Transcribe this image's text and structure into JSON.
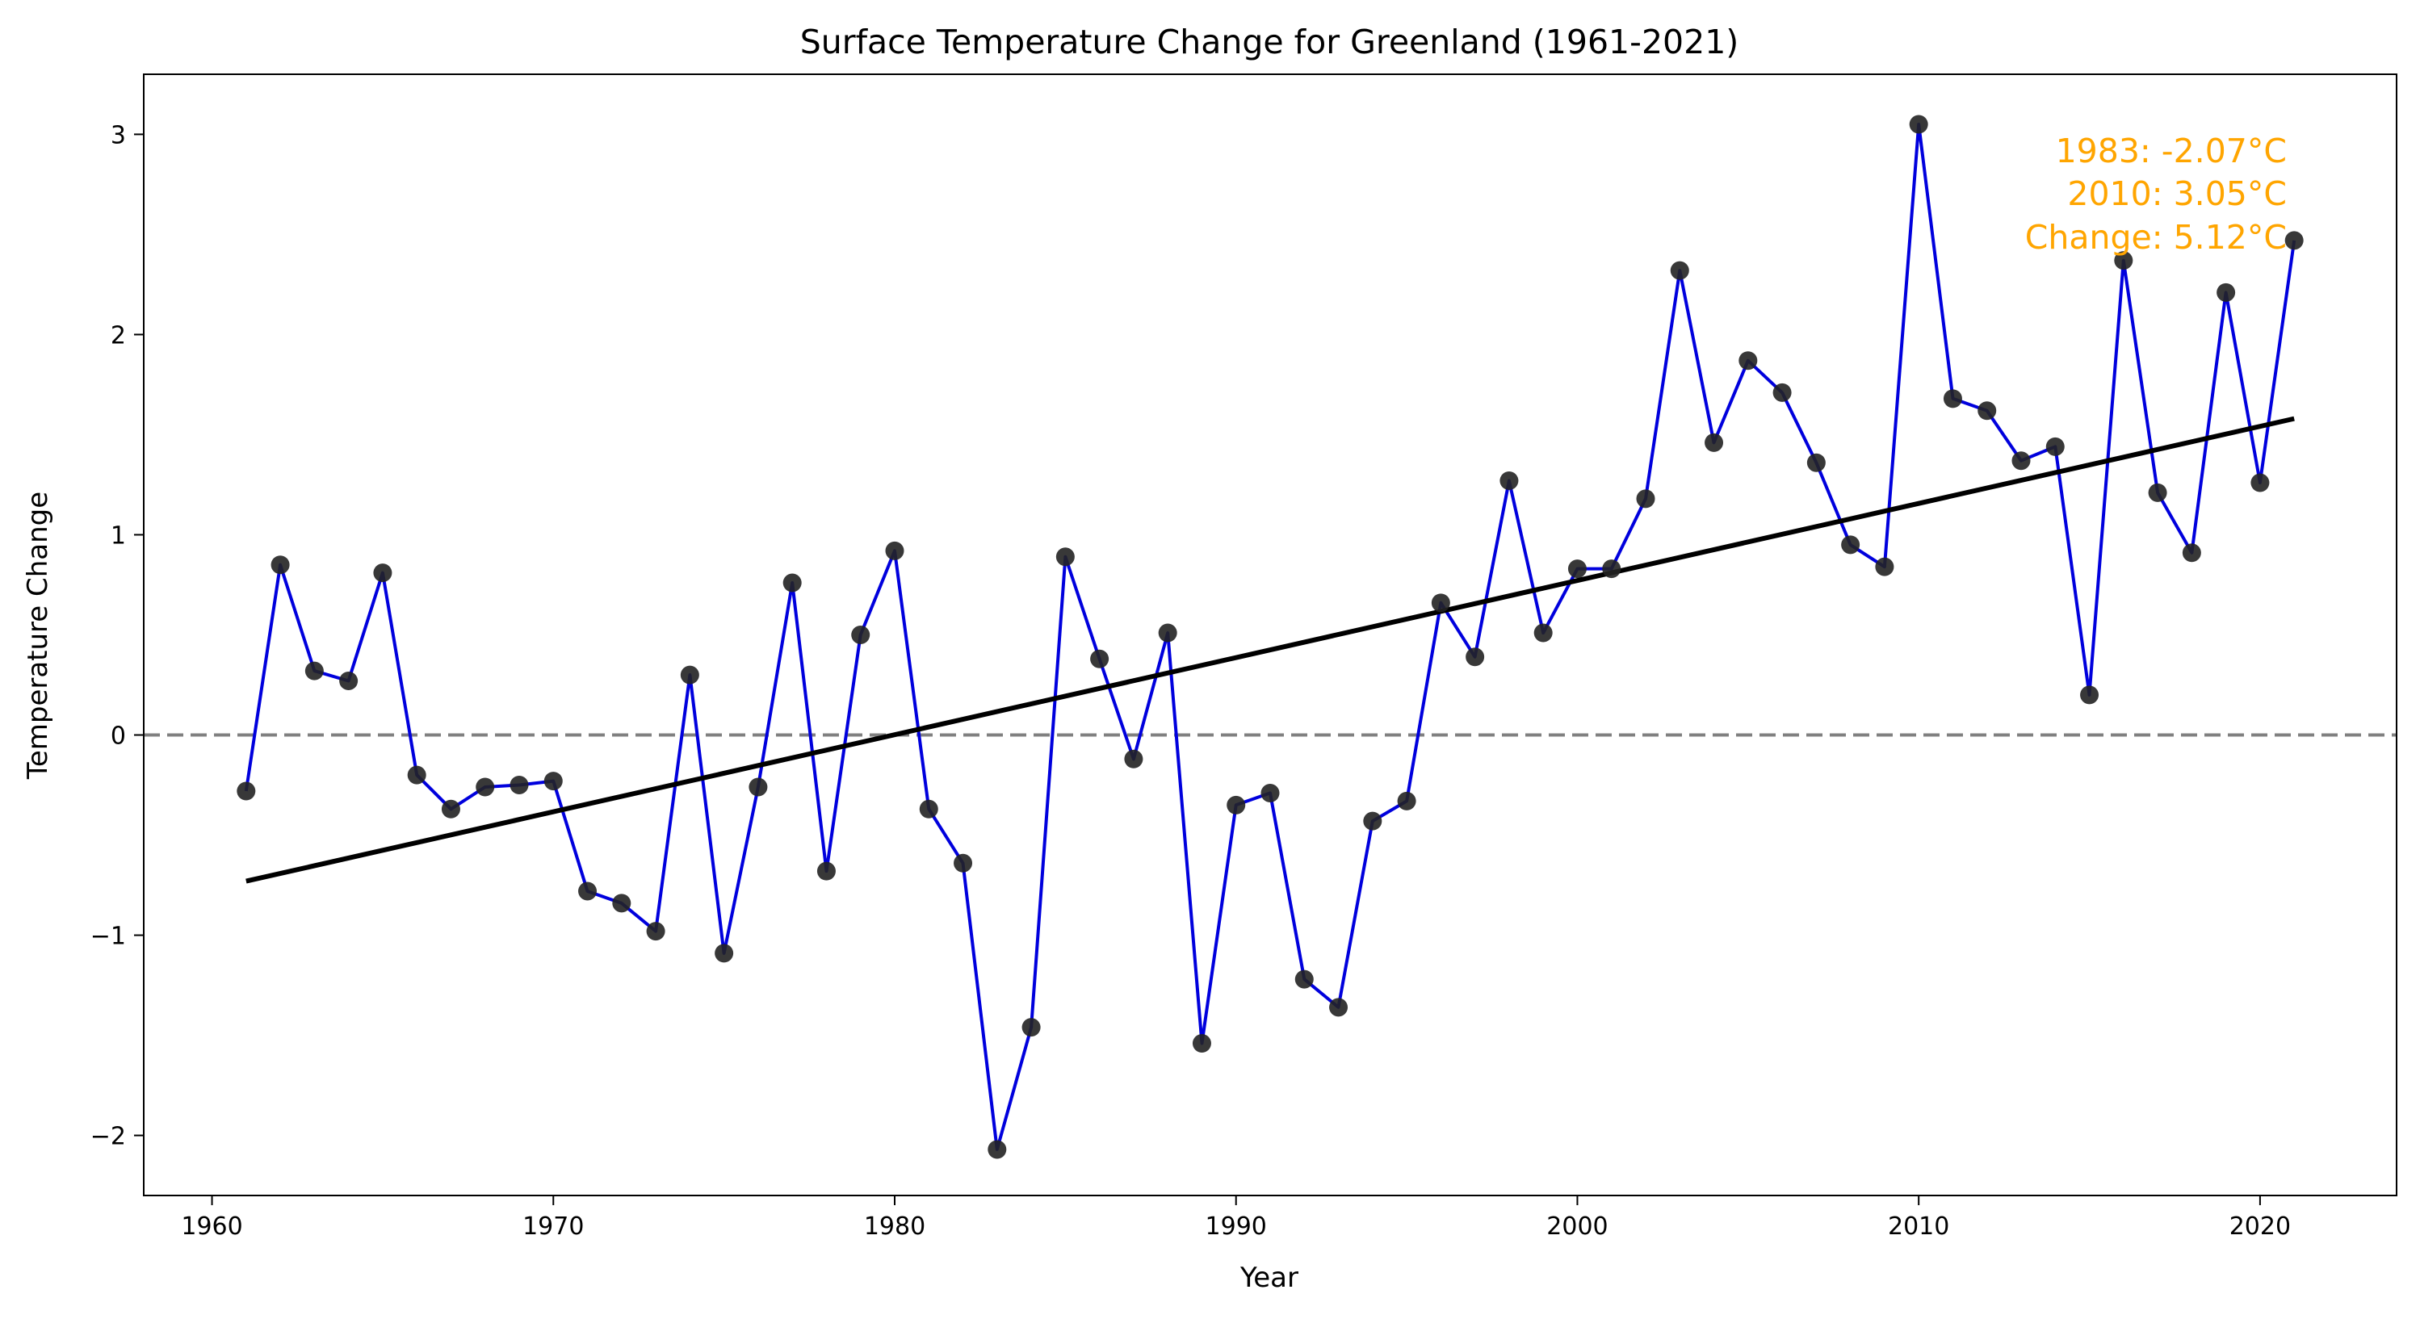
{
  "chart_data": {
    "type": "line",
    "title": "Surface Temperature Change for Greenland (1961-2021)",
    "xlabel": "Year",
    "ylabel": "Temperature Change",
    "xlim": [
      1958.0,
      2024.0
    ],
    "ylim": [
      -2.3,
      3.3
    ],
    "xticks": [
      1960,
      1970,
      1980,
      1990,
      2000,
      2010,
      2020
    ],
    "yticks": [
      -2,
      -1,
      0,
      1,
      2,
      3
    ],
    "ytick_labels": [
      "−2",
      "−1",
      "0",
      "1",
      "2",
      "3"
    ],
    "grid": false,
    "series": [
      {
        "type": "line-with-markers",
        "color": "#0000dd",
        "marker_color": "#222222",
        "x": [
          1961,
          1962,
          1963,
          1964,
          1965,
          1966,
          1967,
          1968,
          1969,
          1970,
          1971,
          1972,
          1973,
          1974,
          1975,
          1976,
          1977,
          1978,
          1979,
          1980,
          1981,
          1982,
          1983,
          1984,
          1985,
          1986,
          1987,
          1988,
          1989,
          1990,
          1991,
          1992,
          1993,
          1994,
          1995,
          1996,
          1997,
          1998,
          1999,
          2000,
          2001,
          2002,
          2003,
          2004,
          2005,
          2006,
          2007,
          2008,
          2009,
          2010,
          2011,
          2012,
          2013,
          2014,
          2015,
          2016,
          2017,
          2018,
          2019,
          2020,
          2021
        ],
        "y": [
          -0.28,
          0.85,
          0.32,
          0.27,
          0.81,
          -0.2,
          -0.37,
          -0.26,
          -0.25,
          -0.23,
          -0.78,
          -0.84,
          -0.98,
          0.3,
          -1.09,
          -0.26,
          0.76,
          -0.68,
          0.5,
          0.92,
          -0.37,
          -0.64,
          -2.07,
          -1.46,
          0.89,
          0.38,
          -0.12,
          0.51,
          -1.54,
          -0.35,
          -0.29,
          -1.22,
          -1.36,
          -0.43,
          -0.33,
          0.66,
          0.39,
          1.27,
          0.51,
          0.83,
          0.83,
          1.18,
          2.32,
          1.46,
          1.87,
          1.71,
          1.36,
          0.95,
          0.84,
          3.05,
          1.68,
          1.62,
          1.37,
          1.44,
          0.2,
          2.37,
          1.21,
          0.91,
          2.21,
          1.26,
          2.47
        ]
      }
    ],
    "trendline": {
      "color": "#000000",
      "x": [
        1961,
        2021
      ],
      "y": [
        -0.73,
        1.58
      ]
    },
    "reference_line": {
      "y": 0,
      "style": "dashed",
      "color": "#808080"
    },
    "annotation": {
      "color": "#ffa500",
      "lines": [
        "1983: -2.07°C",
        "2010: 3.05°C",
        "Change: 5.12°C"
      ]
    }
  }
}
